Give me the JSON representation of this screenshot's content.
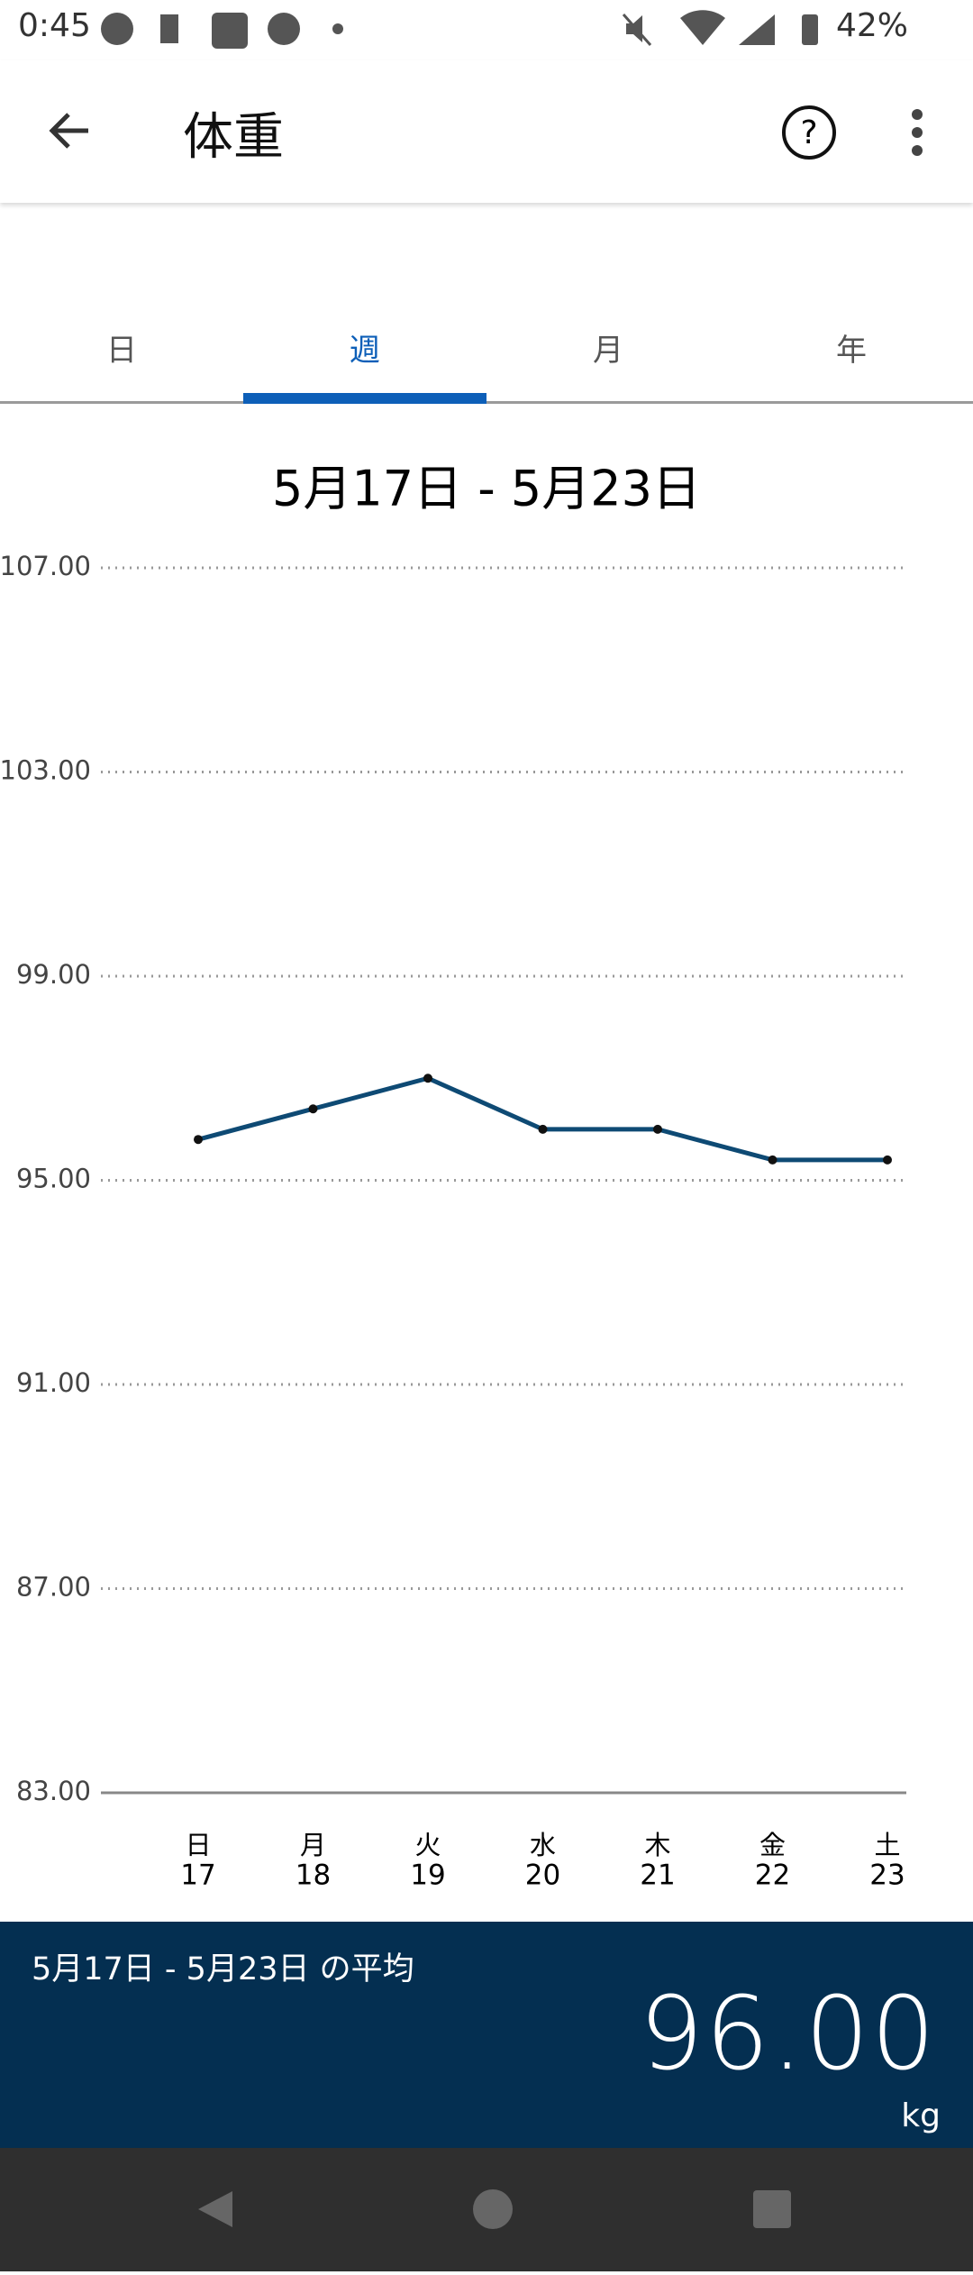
{
  "status_bar": {
    "time": "0:45",
    "battery": "42%"
  },
  "app_bar": {
    "title": "体重"
  },
  "tabs": [
    "日",
    "週",
    "月",
    "年"
  ],
  "chart_data": {
    "type": "line",
    "title": "5月17日 - 5月23日",
    "weekdays": [
      "日",
      "月",
      "火",
      "水",
      "木",
      "金",
      "土"
    ],
    "categories": [
      "17",
      "18",
      "19",
      "20",
      "21",
      "22",
      "23"
    ],
    "series": [
      {
        "color": "#0e4a74",
        "values": [
          95.8,
          96.4,
          97.0,
          96.0,
          96.0,
          95.4,
          95.4
        ]
      }
    ],
    "ylim": [
      83,
      107
    ],
    "yticks": [
      {
        "value": 107,
        "label": "107.00"
      },
      {
        "value": 103,
        "label": "103.00"
      },
      {
        "value": 99,
        "label": "99.00"
      },
      {
        "value": 95,
        "label": "95.00"
      },
      {
        "value": 91,
        "label": "91.00"
      },
      {
        "value": 87,
        "label": "87.00"
      },
      {
        "value": 83,
        "label": "83.00"
      }
    ],
    "grid": true
  },
  "average": {
    "label": "5月17日 - 5月23日 の平均",
    "value": "96.00",
    "unit": "kg"
  }
}
